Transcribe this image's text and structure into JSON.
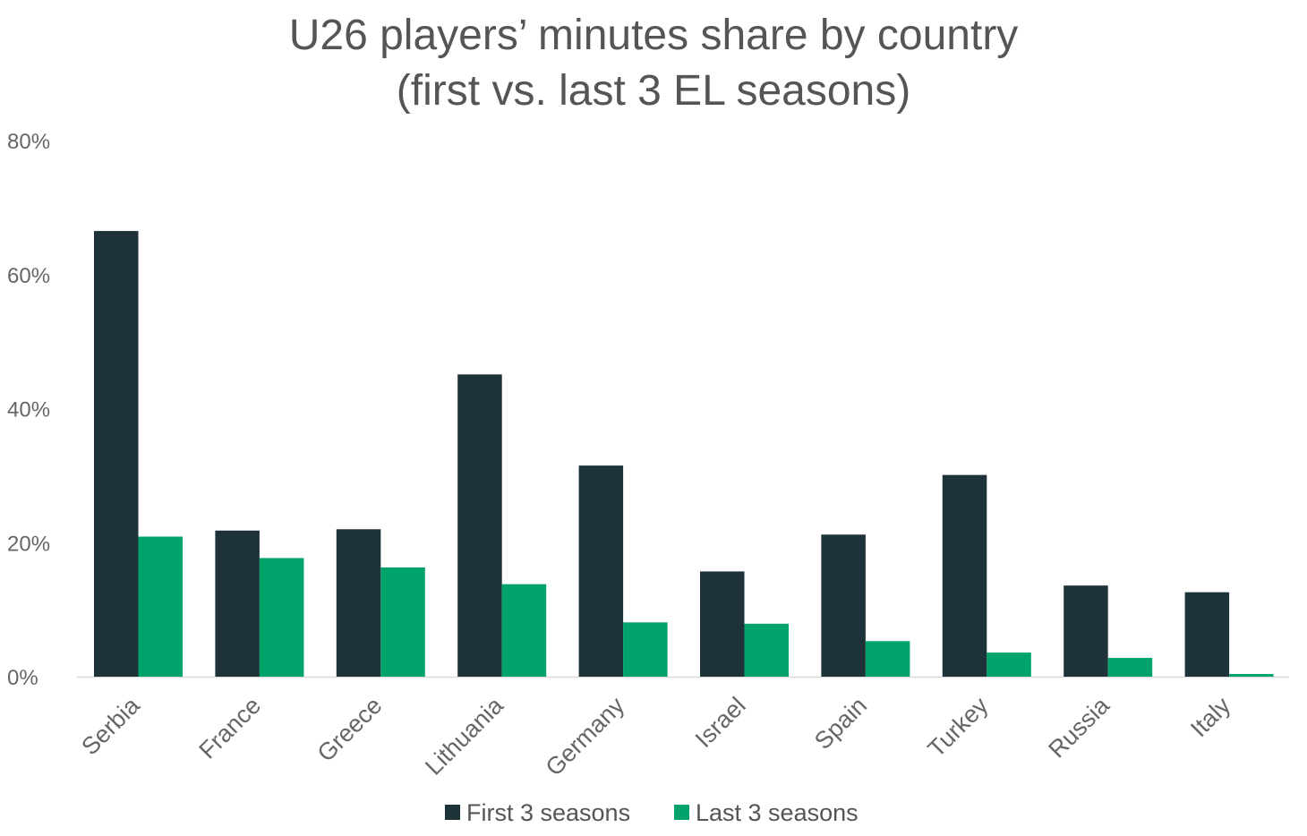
{
  "chart_data": {
    "type": "bar",
    "title_lines": [
      "U26 players’ minutes share by country",
      "(first vs. last 3 EL seasons)"
    ],
    "xlabel": "",
    "ylabel": "",
    "categories": [
      "Serbia",
      "France",
      "Greece",
      "Lithuania",
      "Germany",
      "Israel",
      "Spain",
      "Turkey",
      "Russia",
      "Italy"
    ],
    "series": [
      {
        "name": "First 3 seasons",
        "color": "#1e3239",
        "values": [
          66.5,
          21.8,
          22.0,
          45.1,
          31.5,
          15.7,
          21.2,
          30.1,
          13.6,
          12.6
        ]
      },
      {
        "name": "Last 3 seasons",
        "color": "#00a46a",
        "values": [
          20.9,
          17.7,
          16.3,
          13.8,
          8.1,
          7.9,
          5.3,
          3.6,
          2.8,
          0.4
        ]
      }
    ],
    "ylim": [
      0,
      80
    ],
    "yticks": [
      0,
      20,
      40,
      60,
      80
    ],
    "ytick_labels": [
      "0%",
      "20%",
      "40%",
      "60%",
      "80%"
    ],
    "grid": false,
    "legend_position": "bottom"
  }
}
